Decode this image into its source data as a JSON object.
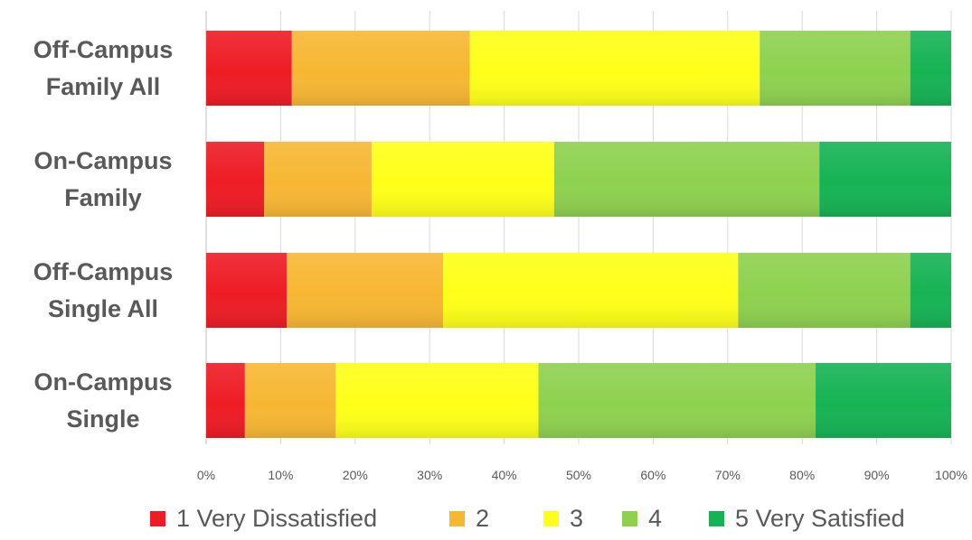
{
  "chart_data": {
    "type": "bar",
    "orientation": "horizontal",
    "stacked": true,
    "percent_stacked": true,
    "categories": [
      "Off-Campus Family All",
      "On-Campus Family",
      "Off-Campus Single All",
      "On-Campus Single"
    ],
    "category_lines": [
      [
        "Off-Campus",
        "Family All"
      ],
      [
        "On-Campus",
        "Family"
      ],
      [
        "Off-Campus",
        "Single All"
      ],
      [
        "On-Campus",
        "Single"
      ]
    ],
    "series": [
      {
        "name": "1 Very Dissatisfied",
        "color": "#ee1c25",
        "values": [
          11.5,
          7.8,
          10.8,
          5.2
        ]
      },
      {
        "name": "2",
        "color": "#f7b733",
        "values": [
          23.9,
          14.4,
          21.0,
          12.2
        ]
      },
      {
        "name": "3",
        "color": "#ffff19",
        "values": [
          38.9,
          24.5,
          39.6,
          27.2
        ]
      },
      {
        "name": "4",
        "color": "#8ed14f",
        "values": [
          20.2,
          35.6,
          23.1,
          37.2
        ]
      },
      {
        "name": "5 Very Satisfied",
        "color": "#16b354",
        "values": [
          5.5,
          17.7,
          5.5,
          18.2
        ]
      }
    ],
    "xticks": [
      "0%",
      "10%",
      "20%",
      "30%",
      "40%",
      "50%",
      "60%",
      "70%",
      "80%",
      "90%",
      "100%"
    ],
    "xlim": [
      0,
      100
    ],
    "title": "",
    "xlabel": "",
    "ylabel": "",
    "grid": true,
    "legend_position": "bottom"
  }
}
